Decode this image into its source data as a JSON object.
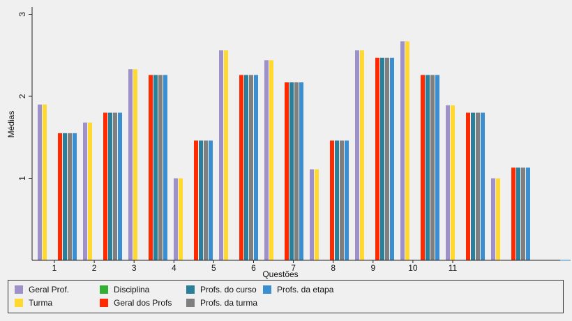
{
  "chart_data": {
    "type": "bar",
    "title": "",
    "xlabel": "Questões",
    "ylabel": "Médias",
    "ylim": [
      0,
      3
    ],
    "yticks": [
      1,
      2,
      3
    ],
    "grid": false,
    "legend_position": "bottom",
    "categories": [
      "1",
      "2",
      "3",
      "4",
      "5",
      "6",
      "7",
      "8",
      "9",
      "10",
      "11"
    ],
    "series": [
      {
        "name": "Geral Prof.",
        "color": "#9e91c9",
        "values": [
          1.9,
          1.68,
          2.33,
          1.0,
          2.56,
          2.44,
          1.11,
          2.56,
          2.67,
          1.89,
          1.0
        ]
      },
      {
        "name": "Turma",
        "color": "#ffd92f",
        "values": [
          1.9,
          1.68,
          2.33,
          1.0,
          2.56,
          2.44,
          1.11,
          2.56,
          2.67,
          1.89,
          1.0
        ]
      },
      {
        "name": "Disciplina",
        "color": "#33b033",
        "values": [
          null,
          null,
          null,
          null,
          null,
          null,
          null,
          null,
          null,
          null,
          null
        ]
      },
      {
        "name": "Geral dos Profs",
        "color": "#ff2a00",
        "values": [
          1.55,
          1.8,
          2.26,
          1.46,
          2.26,
          2.17,
          1.46,
          2.47,
          2.26,
          1.8,
          1.13
        ]
      },
      {
        "name": "Profs. do curso",
        "color": "#2a7f9a",
        "values": [
          1.55,
          1.8,
          2.26,
          1.46,
          2.26,
          2.17,
          1.46,
          2.47,
          2.26,
          1.8,
          1.13
        ]
      },
      {
        "name": "Profs. da turma",
        "color": "#7f7f7f",
        "values": [
          1.55,
          1.8,
          2.26,
          1.46,
          2.26,
          2.17,
          1.46,
          2.47,
          2.26,
          1.8,
          1.13
        ]
      },
      {
        "name": "Profs. da etapa",
        "color": "#3b8fd0",
        "values": [
          1.55,
          1.8,
          2.26,
          1.46,
          2.26,
          2.17,
          1.46,
          2.47,
          2.26,
          1.8,
          1.13
        ]
      }
    ]
  }
}
